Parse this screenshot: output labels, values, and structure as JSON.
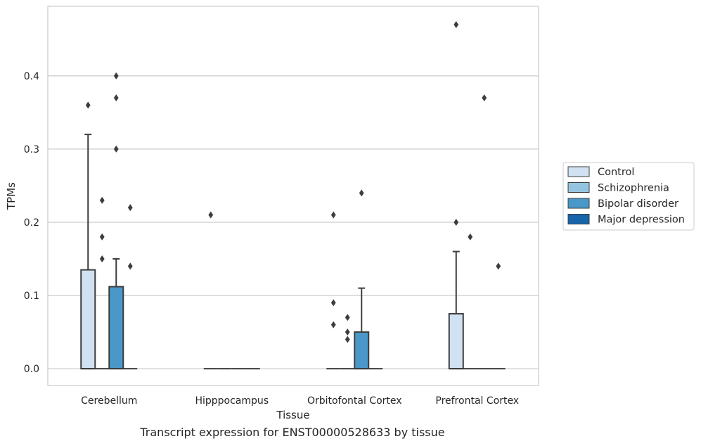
{
  "caption": "Transcript expression for ENST00000528633 by tissue",
  "chart_data": {
    "type": "box",
    "xlabel": "Tissue",
    "ylabel": "TPMs",
    "ylim": [
      -0.023,
      0.495
    ],
    "yticks": [
      0.0,
      0.1,
      0.2,
      0.3,
      0.4
    ],
    "ytick_labels": [
      "0.0",
      "0.1",
      "0.2",
      "0.3",
      "0.4"
    ],
    "grid": "horizontal",
    "legend_position": "right-center",
    "categories": [
      "Cerebellum",
      "Hipppocampus",
      "Orbitofontal Cortex",
      "Prefrontal Cortex"
    ],
    "series": [
      {
        "name": "Control",
        "color": "#d0e1f2",
        "boxes": [
          {
            "q1": 0.0,
            "median": 0.0,
            "q3": 0.135,
            "whisker_low": 0.0,
            "whisker_high": 0.32,
            "outliers": [
              0.36
            ]
          },
          {
            "q1": 0.0,
            "median": 0.0,
            "q3": 0.0,
            "whisker_low": 0.0,
            "whisker_high": 0.0,
            "outliers": [
              0.21
            ]
          },
          {
            "q1": 0.0,
            "median": 0.0,
            "q3": 0.0,
            "whisker_low": 0.0,
            "whisker_high": 0.0,
            "outliers": [
              0.21,
              0.09,
              0.06
            ]
          },
          {
            "q1": 0.0,
            "median": 0.0,
            "q3": 0.075,
            "whisker_low": 0.0,
            "whisker_high": 0.16,
            "outliers": [
              0.2,
              0.47
            ]
          }
        ]
      },
      {
        "name": "Schizophrenia",
        "color": "#94c4df",
        "boxes": [
          {
            "q1": 0.0,
            "median": 0.0,
            "q3": 0.0,
            "whisker_low": 0.0,
            "whisker_high": 0.0,
            "outliers": [
              0.23,
              0.18,
              0.15
            ]
          },
          {
            "q1": 0.0,
            "median": 0.0,
            "q3": 0.0,
            "whisker_low": 0.0,
            "whisker_high": 0.0,
            "outliers": []
          },
          {
            "q1": 0.0,
            "median": 0.0,
            "q3": 0.0,
            "whisker_low": 0.0,
            "whisker_high": 0.0,
            "outliers": [
              0.07,
              0.05,
              0.04
            ]
          },
          {
            "q1": 0.0,
            "median": 0.0,
            "q3": 0.0,
            "whisker_low": 0.0,
            "whisker_high": 0.0,
            "outliers": [
              0.18
            ]
          }
        ]
      },
      {
        "name": "Bipolar disorder",
        "color": "#4a98c9",
        "boxes": [
          {
            "q1": 0.0,
            "median": 0.0,
            "q3": 0.112,
            "whisker_low": 0.0,
            "whisker_high": 0.15,
            "outliers": [
              0.4,
              0.37,
              0.3
            ]
          },
          {
            "q1": 0.0,
            "median": 0.0,
            "q3": 0.0,
            "whisker_low": 0.0,
            "whisker_high": 0.0,
            "outliers": []
          },
          {
            "q1": 0.0,
            "median": 0.0,
            "q3": 0.05,
            "whisker_low": 0.0,
            "whisker_high": 0.11,
            "outliers": [
              0.24
            ]
          },
          {
            "q1": 0.0,
            "median": 0.0,
            "q3": 0.0,
            "whisker_low": 0.0,
            "whisker_high": 0.0,
            "outliers": [
              0.37
            ]
          }
        ]
      },
      {
        "name": "Major depression",
        "color": "#1764ab",
        "boxes": [
          {
            "q1": 0.0,
            "median": 0.0,
            "q3": 0.0,
            "whisker_low": 0.0,
            "whisker_high": 0.0,
            "outliers": [
              0.22,
              0.14
            ]
          },
          {
            "q1": 0.0,
            "median": 0.0,
            "q3": 0.0,
            "whisker_low": 0.0,
            "whisker_high": 0.0,
            "outliers": []
          },
          {
            "q1": 0.0,
            "median": 0.0,
            "q3": 0.0,
            "whisker_low": 0.0,
            "whisker_high": 0.0,
            "outliers": []
          },
          {
            "q1": 0.0,
            "median": 0.0,
            "q3": 0.0,
            "whisker_low": 0.0,
            "whisker_high": 0.0,
            "outliers": [
              0.14
            ]
          }
        ]
      }
    ]
  }
}
